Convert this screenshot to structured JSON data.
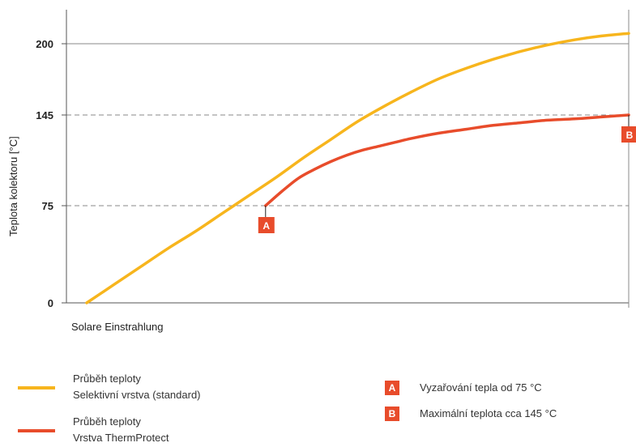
{
  "chart_data": {
    "type": "line",
    "title": "",
    "xlabel": "Solare Einstrahlung",
    "ylabel": "Teplota kolektoru [°C]",
    "ylim": [
      0,
      220
    ],
    "xlim": [
      0,
      100
    ],
    "y_ticks": [
      0,
      75,
      145,
      200
    ],
    "y_tick_labels": [
      "0",
      "75",
      "145",
      "200"
    ],
    "reference_lines": [
      75,
      145
    ],
    "series": [
      {
        "name": "Průběh teploty Selektivní vrstva (standard)",
        "color": "#f7b51d",
        "x": [
          0,
          5,
          10,
          15,
          20,
          25,
          30,
          35,
          40,
          45,
          50,
          55,
          60,
          65,
          70,
          75,
          80,
          85,
          90,
          95,
          100
        ],
        "y": [
          0,
          14,
          28,
          42,
          55,
          69,
          83,
          97,
          112,
          126,
          140,
          152,
          163,
          173,
          181,
          188,
          194,
          199,
          203,
          206,
          208
        ]
      },
      {
        "name": "Průběh teploty Vrstva ThermProtect",
        "color": "#e84c2b",
        "x": [
          33,
          36,
          39,
          42,
          45,
          48,
          51,
          54,
          57,
          60,
          65,
          70,
          75,
          80,
          85,
          90,
          95,
          100
        ],
        "y": [
          75,
          86,
          96,
          103,
          109,
          114,
          118,
          121,
          124,
          127,
          131,
          134,
          137,
          139,
          141,
          142,
          143.5,
          145
        ]
      }
    ],
    "annotations": [
      {
        "label": "A",
        "x": 33,
        "y": 75,
        "color": "#e84c2b"
      },
      {
        "label": "B",
        "x": 100,
        "y": 145,
        "color": "#e84c2b"
      }
    ]
  },
  "legend": {
    "series": [
      {
        "line1": "Průběh teploty",
        "line2": "Selektivní vrstva (standard)",
        "color": "#f7b51d"
      },
      {
        "line1": "Průběh teploty",
        "line2": "Vrstva ThermProtect",
        "color": "#e84c2b"
      }
    ],
    "notes": [
      {
        "badge": "A",
        "text": "Vyzařování tepla od 75 °C"
      },
      {
        "badge": "B",
        "text": "Maximální teplota cca 145 °C"
      }
    ]
  }
}
